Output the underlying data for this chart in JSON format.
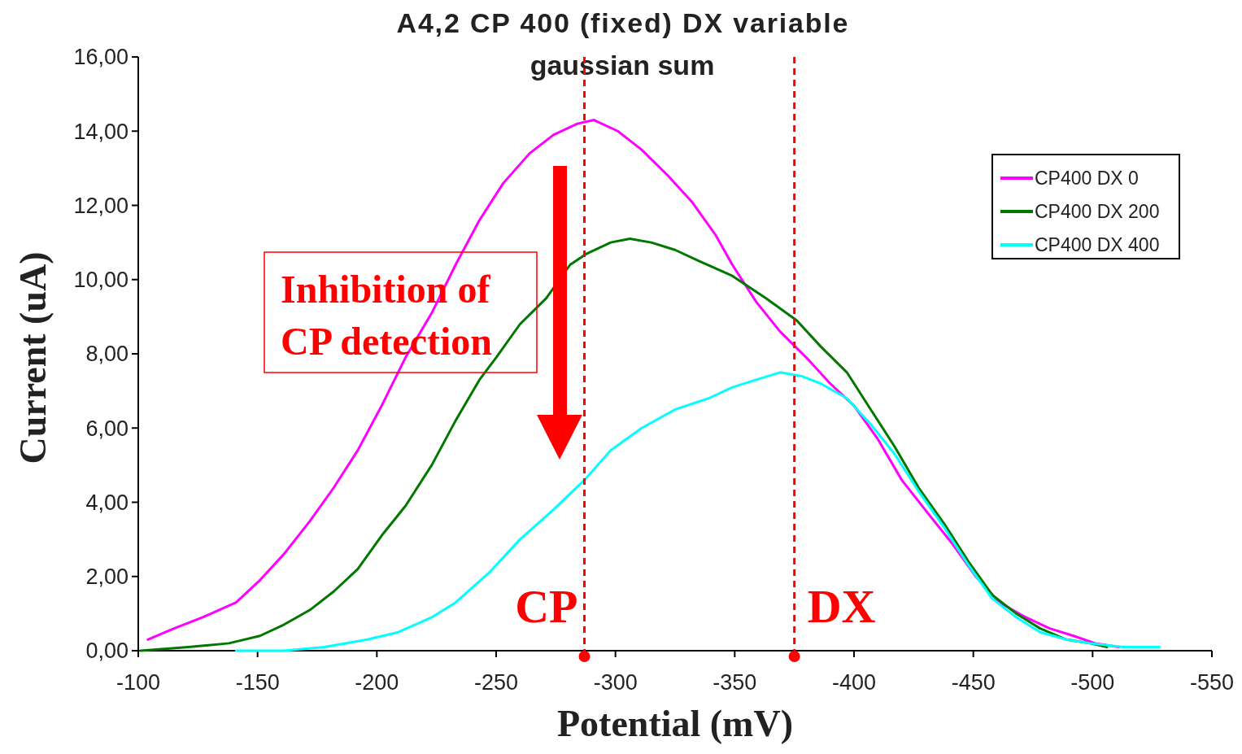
{
  "chart_data": {
    "type": "line",
    "title": "A4,2 CP 400 (fixed) DX variable",
    "subtitle": "gaussian sum",
    "xlabel": "Potential (mV)",
    "ylabel": "Current (uA)",
    "xlim": [
      -100,
      -550
    ],
    "xticks": [
      -100,
      -150,
      -200,
      -250,
      -300,
      -350,
      -400,
      -450,
      -500,
      -550
    ],
    "ylim": [
      0,
      16
    ],
    "yticks": [
      {
        "value": 0,
        "label": "0,00"
      },
      {
        "value": 2,
        "label": "2,00"
      },
      {
        "value": 4,
        "label": "4,00"
      },
      {
        "value": 6,
        "label": "6,00"
      },
      {
        "value": 8,
        "label": "8,00"
      },
      {
        "value": 10,
        "label": "10,00"
      },
      {
        "value": 12,
        "label": "12,00"
      },
      {
        "value": 14,
        "label": "14,00"
      },
      {
        "value": 16,
        "label": "16,00"
      }
    ],
    "grid": false,
    "legend": "top right",
    "marker": "none",
    "line_style": "solid",
    "series": [
      {
        "name": "CP400 DX 0",
        "color": "#ff00ff",
        "x": [
          -104,
          -115,
          -127,
          -141,
          -151,
          -161,
          -172,
          -182,
          -192,
          -202,
          -212,
          -223,
          -233,
          -243,
          -253,
          -264,
          -274,
          -284,
          -291,
          -301,
          -311,
          -322,
          -332,
          -342,
          -349,
          -359,
          -369,
          -380,
          -390,
          -400,
          -410,
          -420,
          -431,
          -441,
          -451,
          -461,
          -472,
          -482,
          -492,
          -501,
          -511
        ],
        "values": [
          0.3,
          0.6,
          0.9,
          1.3,
          1.9,
          2.6,
          3.5,
          4.4,
          5.4,
          6.6,
          7.9,
          9.1,
          10.4,
          11.6,
          12.6,
          13.4,
          13.9,
          14.2,
          14.3,
          14.0,
          13.5,
          12.8,
          12.1,
          11.2,
          10.4,
          9.4,
          8.6,
          7.9,
          7.2,
          6.6,
          5.7,
          4.6,
          3.7,
          2.9,
          2.0,
          1.3,
          0.9,
          0.6,
          0.4,
          0.2,
          0.1
        ]
      },
      {
        "name": "CP400 DX 200",
        "color": "#007800",
        "x": [
          -101,
          -121,
          -138,
          -151,
          -161,
          -172,
          -182,
          -192,
          -202,
          -212,
          -223,
          -233,
          -243,
          -250,
          -260,
          -271,
          -281,
          -288,
          -298,
          -306,
          -315,
          -325,
          -335,
          -349,
          -363,
          -376,
          -386,
          -397,
          -407,
          -417,
          -427,
          -438,
          -448,
          -458,
          -468,
          -478,
          -489,
          -499,
          -506
        ],
        "values": [
          0.0,
          0.1,
          0.2,
          0.4,
          0.7,
          1.1,
          1.6,
          2.2,
          3.1,
          3.9,
          5.0,
          6.2,
          7.3,
          7.9,
          8.8,
          9.5,
          10.4,
          10.7,
          11.0,
          11.1,
          11.0,
          10.8,
          10.5,
          10.1,
          9.5,
          8.9,
          8.2,
          7.5,
          6.5,
          5.5,
          4.4,
          3.4,
          2.4,
          1.5,
          1.0,
          0.6,
          0.3,
          0.2,
          0.1
        ]
      },
      {
        "name": "CP400 DX 400",
        "color": "#00ffff",
        "x": [
          -141,
          -161,
          -178,
          -196,
          -209,
          -223,
          -233,
          -247,
          -260,
          -274,
          -287,
          -298,
          -311,
          -325,
          -339,
          -349,
          -359,
          -369,
          -378,
          -386,
          -397,
          -407,
          -417,
          -427,
          -438,
          -448,
          -458,
          -468,
          -478,
          -489,
          -499,
          -513,
          -528
        ],
        "values": [
          0.0,
          0.0,
          0.1,
          0.3,
          0.5,
          0.9,
          1.3,
          2.1,
          3.0,
          3.8,
          4.6,
          5.4,
          6.0,
          6.5,
          6.8,
          7.1,
          7.3,
          7.5,
          7.4,
          7.2,
          6.8,
          6.1,
          5.3,
          4.3,
          3.3,
          2.3,
          1.4,
          0.9,
          0.5,
          0.3,
          0.2,
          0.1,
          0.1
        ]
      }
    ],
    "ref_lines": [
      {
        "axis": "x",
        "value": -287,
        "label": "CP",
        "color": "#ff0000",
        "line_style": "dashed"
      },
      {
        "axis": "x",
        "value": -375,
        "label": "DX",
        "color": "#ff0000",
        "line_style": "dashed"
      }
    ],
    "annotations": [
      "Inhibition of CP detection"
    ]
  }
}
